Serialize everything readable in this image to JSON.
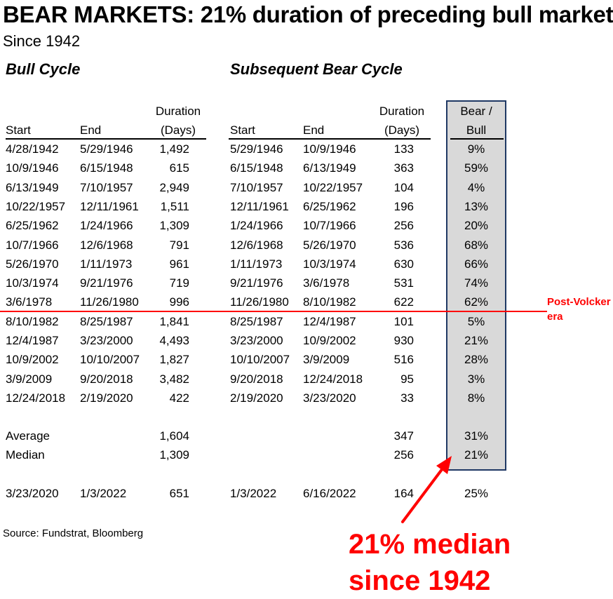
{
  "title": "BEAR MARKETS: 21% duration of preceding bull market",
  "subtitle": "Since 1942",
  "sections": {
    "bull": "Bull Cycle",
    "bear": "Subsequent Bear Cycle"
  },
  "headers": {
    "start": "Start",
    "end": "End",
    "duration_line1": "Duration",
    "duration_line2": "(Days)",
    "ratio_line1": "Bear /",
    "ratio_line2": "Bull"
  },
  "rows": [
    [
      "4/28/1942",
      "5/29/1946",
      "1,492",
      "5/29/1946",
      "10/9/1946",
      "133",
      "9%"
    ],
    [
      "10/9/1946",
      "6/15/1948",
      "615",
      "6/15/1948",
      "6/13/1949",
      "363",
      "59%"
    ],
    [
      "6/13/1949",
      "7/10/1957",
      "2,949",
      "7/10/1957",
      "10/22/1957",
      "104",
      "4%"
    ],
    [
      "10/22/1957",
      "12/11/1961",
      "1,511",
      "12/11/1961",
      "6/25/1962",
      "196",
      "13%"
    ],
    [
      "6/25/1962",
      "1/24/1966",
      "1,309",
      "1/24/1966",
      "10/7/1966",
      "256",
      "20%"
    ],
    [
      "10/7/1966",
      "12/6/1968",
      "791",
      "12/6/1968",
      "5/26/1970",
      "536",
      "68%"
    ],
    [
      "5/26/1970",
      "1/11/1973",
      "961",
      "1/11/1973",
      "10/3/1974",
      "630",
      "66%"
    ],
    [
      "10/3/1974",
      "9/21/1976",
      "719",
      "9/21/1976",
      "3/6/1978",
      "531",
      "74%"
    ],
    [
      "3/6/1978",
      "11/26/1980",
      "996",
      "11/26/1980",
      "8/10/1982",
      "622",
      "62%"
    ],
    [
      "8/10/1982",
      "8/25/1987",
      "1,841",
      "8/25/1987",
      "12/4/1987",
      "101",
      "5%"
    ],
    [
      "12/4/1987",
      "3/23/2000",
      "4,493",
      "3/23/2000",
      "10/9/2002",
      "930",
      "21%"
    ],
    [
      "10/9/2002",
      "10/10/2007",
      "1,827",
      "10/10/2007",
      "3/9/2009",
      "516",
      "28%"
    ],
    [
      "3/9/2009",
      "9/20/2018",
      "3,482",
      "9/20/2018",
      "12/24/2018",
      "95",
      "3%"
    ],
    [
      "12/24/2018",
      "2/19/2020",
      "422",
      "2/19/2020",
      "3/23/2020",
      "33",
      "8%"
    ]
  ],
  "summary": [
    [
      "Average",
      "",
      "1,604",
      "",
      "",
      "347",
      "31%"
    ],
    [
      "Median",
      "",
      "1,309",
      "",
      "",
      "256",
      "21%"
    ]
  ],
  "current": [
    "3/23/2020",
    "1/3/2022",
    "651",
    "1/3/2022",
    "6/16/2022",
    "164",
    "25%"
  ],
  "annotation": {
    "line1": "Post-Volcker",
    "line2": "era"
  },
  "source": "Source: Fundstrat, Bloomberg",
  "callout": {
    "line1": "21% median",
    "line2": "since 1942"
  },
  "colors": {
    "accent": "#ff0000",
    "box_fill": "#d9d9d9",
    "box_border": "#1f3864"
  }
}
